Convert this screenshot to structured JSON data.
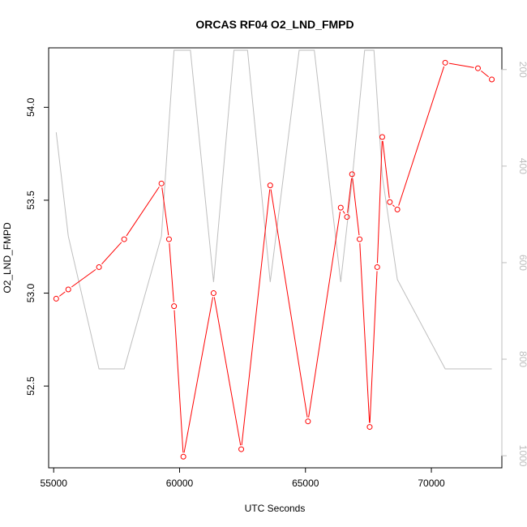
{
  "chart_data": {
    "type": "line",
    "title": "ORCAS RF04 O2_LND_FMPD",
    "xlabel": "UTC Seconds",
    "ylabel": "O2_LND_FMPD",
    "xlim": [
      54800,
      72800
    ],
    "ylim": [
      52.06,
      54.32
    ],
    "y2lim": [
      1025,
      155
    ],
    "y2_reversed": true,
    "x_ticks": [
      55000,
      60000,
      65000,
      70000
    ],
    "y_ticks": [
      52.5,
      53.0,
      53.5,
      54.0
    ],
    "y_tick_labels": [
      "52.5",
      "53.0",
      "53.5",
      "54.0"
    ],
    "y2_ticks": [
      200,
      400,
      600,
      800,
      1000
    ],
    "grid": false,
    "colors": {
      "series": "#ff0000",
      "secondary": "#bebebe",
      "frame": "#000000",
      "secondary_axis": "#bdbdbd"
    },
    "series": [
      {
        "axis": "left",
        "color": "#ff0000",
        "marker": "open-circle",
        "x": [
          55100,
          55580,
          56800,
          57800,
          59280,
          59580,
          59780,
          60150,
          61350,
          62450,
          63600,
          65100,
          66400,
          66650,
          66850,
          67150,
          67550,
          67850,
          68050,
          68350,
          68650,
          70550,
          71850,
          72400
        ],
        "y": [
          52.97,
          53.02,
          53.14,
          53.29,
          53.59,
          53.29,
          52.93,
          52.12,
          53.0,
          52.16,
          53.58,
          52.31,
          53.46,
          53.41,
          53.64,
          53.29,
          52.28,
          53.14,
          53.84,
          53.49,
          53.45,
          54.24,
          54.21,
          54.15
        ]
      },
      {
        "axis": "right",
        "color": "#bebebe",
        "marker": "none",
        "x": [
          55100,
          55580,
          56800,
          57800,
          59280,
          59580,
          59780,
          59930,
          60430,
          61350,
          62160,
          62700,
          63600,
          64750,
          65350,
          66400,
          66850,
          67350,
          67720,
          68050,
          68650,
          70550,
          72400
        ],
        "y": [
          330,
          545,
          820,
          820,
          545,
          310,
          160,
          160,
          160,
          640,
          160,
          160,
          640,
          160,
          160,
          640,
          430,
          160,
          160,
          420,
          635,
          820,
          820
        ]
      }
    ]
  }
}
